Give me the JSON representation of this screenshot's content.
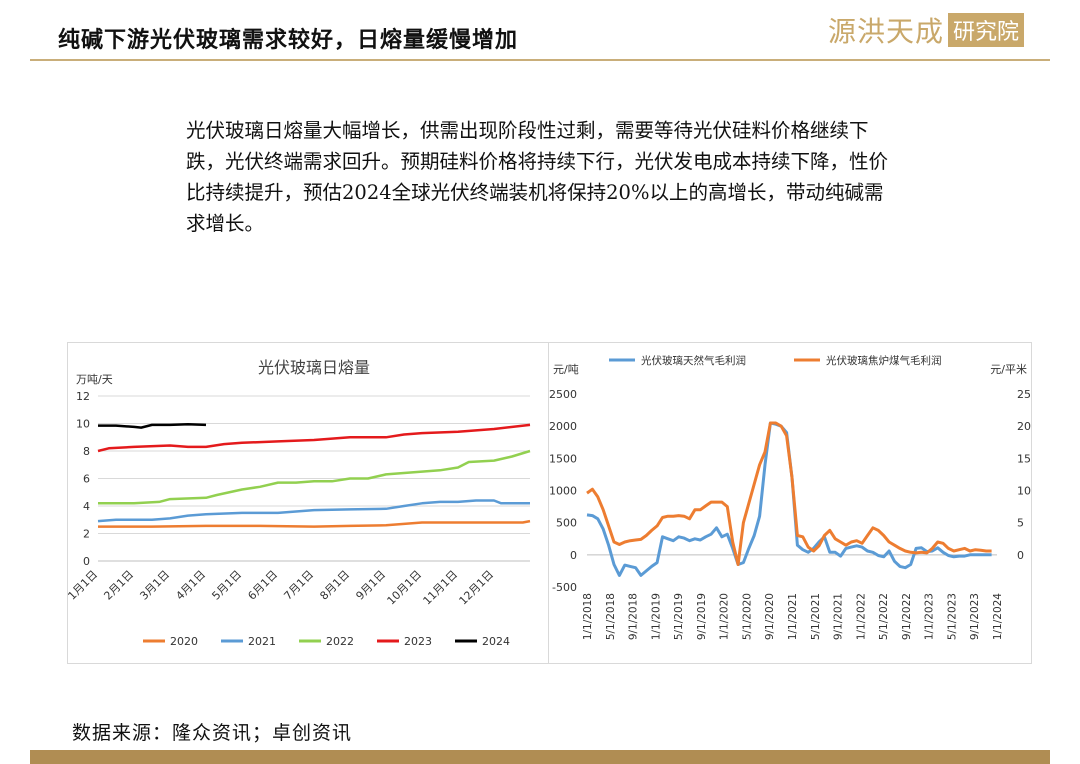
{
  "header": {
    "title": "纯碱下游光伏玻璃需求较好，日熔量缓慢增加",
    "logo_text": "源洪天成",
    "logo_box_text": "研究院"
  },
  "summary": "光伏玻璃日熔量大幅增长，供需出现阶段性过剩，需要等待光伏硅料价格继续下跌，光伏终端需求回升。预期硅料价格将持续下行，光伏发电成本持续下降，性价比持续提升，预估2024全球光伏终端装机将保持20%以上的高增长，带动纯碱需求增长。",
  "footer": {
    "source": "数据来源：隆众资讯；卓创资讯"
  },
  "colors": {
    "accent": "#c9ae7a",
    "footer_bar": "#b08d53",
    "s2020": "#ED7D31",
    "s2021": "#5B9BD5",
    "s2022": "#92D050",
    "s2023": "#E41A1C",
    "s2024": "#000000",
    "gas": "#5B9BD5",
    "coal": "#ED7D31"
  },
  "chart_data": [
    {
      "type": "line",
      "title": "光伏玻璃日熔量",
      "ylabel": "万吨/天",
      "ylim": [
        0,
        12
      ],
      "yticks": [
        0,
        2,
        4,
        6,
        8,
        10,
        12
      ],
      "x_range": [
        0,
        12
      ],
      "xtick_labels": [
        "1月1日",
        "2月1日",
        "3月1日",
        "4月1日",
        "5月1日",
        "6月1日",
        "7月1日",
        "8月1日",
        "9月1日",
        "10月1日",
        "11月1日",
        "12月1日"
      ],
      "grid": true,
      "legend_position": "bottom",
      "series": [
        {
          "name": "2020",
          "color": "#ED7D31",
          "x": [
            0,
            1.5,
            3,
            4.5,
            6,
            7,
            8,
            8.5,
            9,
            10,
            11,
            11.8,
            12
          ],
          "y": [
            2.5,
            2.5,
            2.55,
            2.55,
            2.5,
            2.55,
            2.6,
            2.7,
            2.8,
            2.8,
            2.8,
            2.8,
            2.9
          ]
        },
        {
          "name": "2021",
          "color": "#5B9BD5",
          "x": [
            0,
            0.5,
            1,
            1.5,
            2,
            2.5,
            3,
            4,
            5,
            5.5,
            6,
            7,
            8,
            8.5,
            9,
            9.5,
            10,
            10.5,
            11,
            11.2,
            12
          ],
          "y": [
            2.9,
            3.0,
            3.0,
            3.0,
            3.1,
            3.3,
            3.4,
            3.5,
            3.5,
            3.6,
            3.7,
            3.75,
            3.8,
            4.0,
            4.2,
            4.3,
            4.3,
            4.4,
            4.4,
            4.2,
            4.2
          ]
        },
        {
          "name": "2022",
          "color": "#92D050",
          "x": [
            0,
            1,
            1.7,
            2,
            3,
            3.3,
            4,
            4.5,
            5,
            5.5,
            6,
            6.5,
            7,
            7.5,
            8,
            8.5,
            9,
            9.5,
            10,
            10.3,
            11,
            11.5,
            12
          ],
          "y": [
            4.2,
            4.2,
            4.3,
            4.5,
            4.6,
            4.8,
            5.2,
            5.4,
            5.7,
            5.7,
            5.8,
            5.8,
            6.0,
            6.0,
            6.3,
            6.4,
            6.5,
            6.6,
            6.8,
            7.2,
            7.3,
            7.6,
            8.0
          ]
        },
        {
          "name": "2023",
          "color": "#E41A1C",
          "x": [
            0,
            0.3,
            1,
            2,
            2.5,
            3,
            3.5,
            4,
            5,
            6,
            7,
            8,
            8.5,
            9,
            10,
            11,
            12
          ],
          "y": [
            8.0,
            8.2,
            8.3,
            8.4,
            8.3,
            8.3,
            8.5,
            8.6,
            8.7,
            8.8,
            9.0,
            9.0,
            9.2,
            9.3,
            9.4,
            9.6,
            9.9
          ]
        },
        {
          "name": "2024",
          "color": "#000000",
          "x": [
            0,
            0.5,
            1,
            1.2,
            1.5,
            2,
            2.5,
            3
          ],
          "y": [
            9.85,
            9.85,
            9.75,
            9.7,
            9.9,
            9.9,
            9.95,
            9.9
          ]
        }
      ]
    },
    {
      "type": "line",
      "ylabel": "元/吨",
      "ylabel_right": "元/平米",
      "ylim": [
        -500,
        2500
      ],
      "yticks": [
        -500,
        0,
        500,
        1000,
        1500,
        2000,
        2500
      ],
      "ylim_right": [
        -5,
        25
      ],
      "yticks_right": [
        0,
        5,
        10,
        15,
        20,
        25
      ],
      "x_range": [
        0,
        76
      ],
      "xtick_labels": [
        "1/1/2018",
        "5/1/2018",
        "9/1/2018",
        "1/1/2019",
        "5/1/2019",
        "9/1/2019",
        "1/1/2020",
        "5/1/2020",
        "9/1/2020",
        "1/1/2021",
        "5/1/2021",
        "9/1/2021",
        "1/1/2022",
        "5/1/2022",
        "9/1/2022",
        "1/1/2023",
        "5/1/2023",
        "9/1/2023",
        "1/1/2024"
      ],
      "grid": false,
      "legend_position": "top",
      "series": [
        {
          "name": "光伏玻璃天然气毛利润",
          "color": "#5B9BD5",
          "axis": "left",
          "x": [
            0,
            1,
            2,
            3,
            4,
            5,
            6,
            7,
            8,
            9,
            10,
            11,
            12,
            13,
            14,
            15,
            16,
            17,
            18,
            19,
            20,
            21,
            22,
            23,
            24,
            25,
            26,
            27,
            28,
            29,
            30,
            31,
            32,
            33,
            34,
            35,
            36,
            37,
            38,
            39,
            40,
            41,
            42,
            43,
            44,
            45,
            46,
            47,
            48,
            49,
            50,
            51,
            52,
            53,
            54,
            55,
            56,
            57,
            58,
            59,
            60,
            61,
            62,
            63,
            64,
            65,
            66,
            67,
            68,
            69,
            70,
            71,
            72,
            73,
            74,
            75
          ],
          "y": [
            620,
            610,
            560,
            400,
            150,
            -150,
            -320,
            -160,
            -180,
            -200,
            -320,
            -250,
            -180,
            -120,
            280,
            250,
            220,
            280,
            260,
            220,
            250,
            230,
            280,
            320,
            420,
            280,
            320,
            100,
            -150,
            -120,
            100,
            300,
            600,
            1400,
            2050,
            2030,
            2000,
            1900,
            1200,
            150,
            80,
            40,
            100,
            200,
            280,
            40,
            40,
            -20,
            100,
            120,
            140,
            120,
            60,
            40,
            -10,
            -30,
            60,
            -100,
            -180,
            -200,
            -150,
            100,
            110,
            50,
            60,
            110,
            40,
            -10,
            -30,
            -20,
            -20,
            0,
            0,
            0,
            0,
            0
          ]
        },
        {
          "name": "光伏玻璃焦炉煤气毛利润",
          "color": "#ED7D31",
          "axis": "left",
          "x": [
            0,
            1,
            2,
            3,
            4,
            5,
            6,
            7,
            8,
            9,
            10,
            11,
            12,
            13,
            14,
            15,
            16,
            17,
            18,
            19,
            20,
            21,
            22,
            23,
            24,
            25,
            26,
            27,
            28,
            29,
            30,
            31,
            32,
            33,
            34,
            35,
            36,
            37,
            38,
            39,
            40,
            41,
            42,
            43,
            44,
            45,
            46,
            47,
            48,
            49,
            50,
            51,
            52,
            53,
            54,
            55,
            56,
            57,
            58,
            59,
            60,
            61,
            62,
            63,
            64,
            65,
            66,
            67,
            68,
            69,
            70,
            71,
            72,
            73,
            74,
            75
          ],
          "y": [
            960,
            1020,
            900,
            700,
            450,
            200,
            160,
            200,
            220,
            230,
            240,
            300,
            380,
            450,
            580,
            600,
            600,
            610,
            600,
            560,
            700,
            700,
            760,
            820,
            820,
            820,
            750,
            200,
            -150,
            500,
            800,
            1100,
            1400,
            1600,
            2050,
            2050,
            2000,
            1850,
            1200,
            300,
            280,
            120,
            60,
            140,
            300,
            380,
            250,
            200,
            150,
            200,
            220,
            180,
            300,
            420,
            380,
            300,
            200,
            150,
            100,
            60,
            40,
            30,
            40,
            30,
            100,
            200,
            180,
            100,
            60,
            80,
            100,
            60,
            80,
            70,
            60,
            60
          ]
        }
      ]
    }
  ]
}
